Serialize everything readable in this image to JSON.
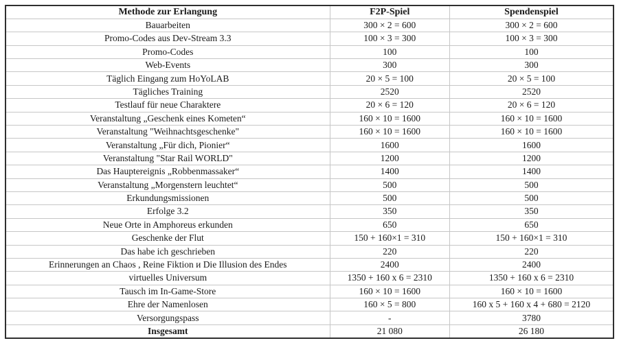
{
  "table": {
    "columns": [
      "Methode zur Erlangung",
      "F2P-Spiel",
      "Spendenspiel"
    ],
    "rows": [
      {
        "method": "Bauarbeiten",
        "f2p": "300 × 2 = 600",
        "donation": "300 × 2 = 600"
      },
      {
        "method": "Promo-Codes aus Dev-Stream 3.3",
        "f2p": "100 × 3 = 300",
        "donation": "100 × 3 = 300"
      },
      {
        "method": "Promo-Codes",
        "f2p": "100",
        "donation": "100"
      },
      {
        "method": "Web-Events",
        "f2p": "300",
        "donation": "300"
      },
      {
        "method": "Täglich Eingang zum HoYoLAB",
        "f2p": "20 × 5 = 100",
        "donation": "20 × 5 = 100"
      },
      {
        "method": "Tägliches Training",
        "f2p": "2520",
        "donation": "2520"
      },
      {
        "method": "Testlauf für neue Charaktere",
        "f2p": "20 × 6 = 120",
        "donation": "20 × 6 = 120"
      },
      {
        "method": "Veranstaltung „Geschenk eines Kometen“",
        "f2p": "160 × 10 = 1600",
        "donation": "160 × 10 = 1600"
      },
      {
        "method": "Veranstaltung \"Weihnachtsgeschenke\"",
        "f2p": "160 × 10 = 1600",
        "donation": "160 × 10 = 1600"
      },
      {
        "method": "Veranstaltung „Für dich, Pionier“",
        "f2p": "1600",
        "donation": "1600"
      },
      {
        "method": "Veranstaltung \"Star Rail WORLD\"",
        "f2p": "1200",
        "donation": "1200"
      },
      {
        "method": "Das Hauptereignis „Robbenmassaker“",
        "f2p": "1400",
        "donation": "1400"
      },
      {
        "method": "Veranstaltung „Morgenstern leuchtet“",
        "f2p": "500",
        "donation": "500"
      },
      {
        "method": "Erkundungsmissionen",
        "f2p": "500",
        "donation": "500"
      },
      {
        "method": "Erfolge 3.2",
        "f2p": "350",
        "donation": "350"
      },
      {
        "method": "Neue Orte in Amphoreus erkunden",
        "f2p": "650",
        "donation": "650"
      },
      {
        "method": "Geschenke der Flut",
        "f2p": "150 + 160×1 = 310",
        "donation": "150 + 160×1 = 310"
      },
      {
        "method": "Das habe ich geschrieben",
        "f2p": "220",
        "donation": "220"
      },
      {
        "method": "Erinnerungen an Chaos , Reine Fiktion и Die Illusion des Endes",
        "f2p": "2400",
        "donation": "2400"
      },
      {
        "method": "virtuelles Universum",
        "f2p": "1350 + 160 x 6 = 2310",
        "donation": "1350 + 160 x 6 = 2310"
      },
      {
        "method": "Tausch im In-Game-Store",
        "f2p": "160 × 10 = 1600",
        "donation": "160 × 10 = 1600"
      },
      {
        "method": "Ehre der Namenlosen",
        "f2p": "160 × 5 = 800",
        "donation": "160 x 5 + 160 x 4 + 680 = 2120"
      },
      {
        "method": "Versorgungspass",
        "f2p": "-",
        "donation": "3780"
      }
    ],
    "total_row": {
      "method": "Insgesamt",
      "f2p": "21 080",
      "donation": "26 180"
    }
  },
  "colors": {
    "outer_border": "#2e2e2e",
    "grid_line": "#c6c6c6",
    "text": "#1a1a1a",
    "background": "#ffffff"
  }
}
